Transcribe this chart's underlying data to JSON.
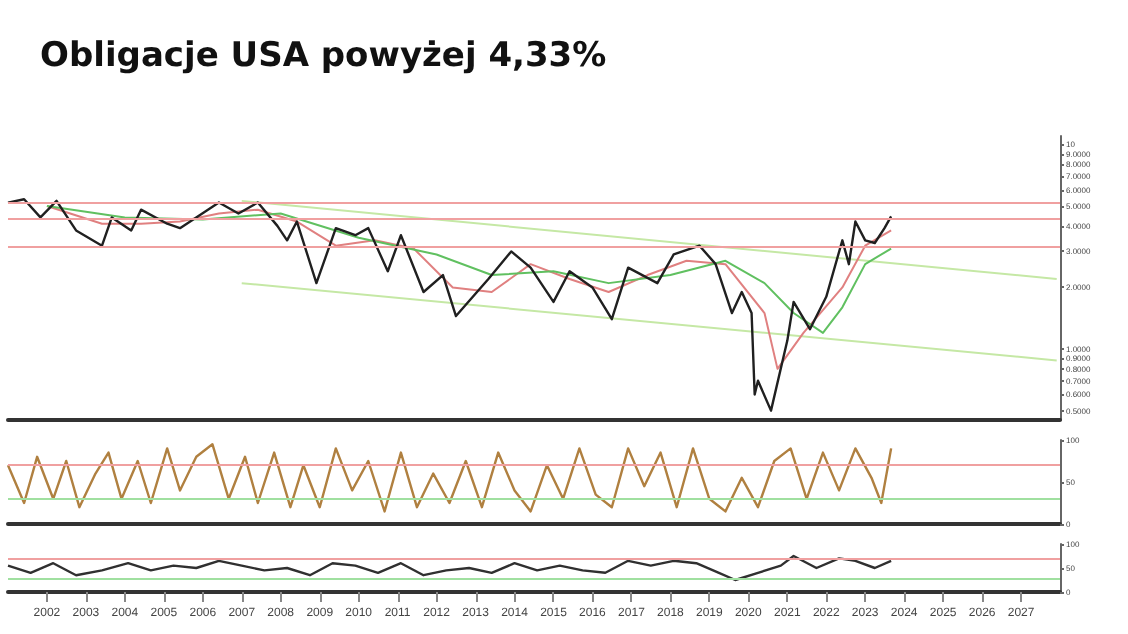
{
  "chart_data": [
    {
      "type": "line",
      "title": "Obligacje USA powyżej 4,33%",
      "log": "y",
      "grid": false,
      "marker": "none",
      "line_style": "solid",
      "tick_labels": "y",
      "xlim": [
        "2001-01",
        "2028-01"
      ],
      "ylim": [
        0.45,
        11
      ],
      "yticks": [
        {
          "value": 0.5,
          "label": "0.5000"
        },
        {
          "value": 0.6,
          "label": "0.6000"
        },
        {
          "value": 0.7,
          "label": "0.7000"
        },
        {
          "value": 0.8,
          "label": "0.8000"
        },
        {
          "value": 0.9,
          "label": "0.9000"
        },
        {
          "value": 1,
          "label": "1.0000"
        },
        {
          "value": 2,
          "label": "2.0000"
        },
        {
          "value": 3,
          "label": "3.0000"
        },
        {
          "value": 4,
          "label": "4.0000"
        },
        {
          "value": 5,
          "label": "5.0000"
        },
        {
          "value": 6,
          "label": "6.0000"
        },
        {
          "value": 7,
          "label": "7.0000"
        },
        {
          "value": 8,
          "label": "8.0000"
        },
        {
          "value": 9,
          "label": "9.0000"
        },
        {
          "value": 10,
          "label": "10"
        }
      ],
      "ref_lines": [
        {
          "axis": "y",
          "value": 5.25,
          "color": "#f0a0a0"
        },
        {
          "axis": "y",
          "value": 4.33,
          "color": "#f0a0a0"
        },
        {
          "axis": "y",
          "value": 3.2,
          "color": "#f0a0a0"
        }
      ],
      "series": [
        {
          "color": "#c5e8a5",
          "x": [
            "2007-01",
            "2027-12"
          ],
          "values": [
            5.3,
            2.2
          ]
        },
        {
          "color": "#c5e8a5",
          "x": [
            "2007-01",
            "2027-12"
          ],
          "values": [
            2.1,
            0.88
          ]
        },
        {
          "color": "#e08080",
          "x": [
            "2002-01",
            "2003-06",
            "2004-06",
            "2005-06",
            "2006-06",
            "2007-06",
            "2008-06",
            "2009-06",
            "2010-06",
            "2011-06",
            "2012-06",
            "2013-06",
            "2014-06",
            "2015-06",
            "2016-06",
            "2017-06",
            "2018-06",
            "2019-06",
            "2020-06",
            "2020-10",
            "2021-06",
            "2022-06",
            "2023-01",
            "2023-09"
          ],
          "values": [
            5.0,
            4.1,
            4.1,
            4.2,
            4.6,
            4.8,
            4.2,
            3.2,
            3.4,
            3.1,
            2.0,
            1.9,
            2.6,
            2.2,
            1.9,
            2.3,
            2.7,
            2.6,
            1.5,
            0.8,
            1.2,
            2.0,
            3.2,
            3.8
          ]
        },
        {
          "color": "#60c060",
          "x": [
            "2002-01",
            "2004-01",
            "2006-01",
            "2008-01",
            "2010-01",
            "2012-01",
            "2013-06",
            "2015-01",
            "2016-06",
            "2018-01",
            "2019-06",
            "2020-06",
            "2021-03",
            "2021-12",
            "2022-06",
            "2023-01",
            "2023-09"
          ],
          "values": [
            5.0,
            4.4,
            4.3,
            4.6,
            3.5,
            2.9,
            2.3,
            2.4,
            2.1,
            2.3,
            2.7,
            2.1,
            1.5,
            1.2,
            1.6,
            2.6,
            3.1
          ]
        },
        {
          "color": "#202020",
          "x": [
            "2001-01",
            "2001-06",
            "2001-11",
            "2002-04",
            "2002-10",
            "2003-06",
            "2003-09",
            "2004-03",
            "2004-06",
            "2005-02",
            "2005-06",
            "2006-06",
            "2006-12",
            "2007-06",
            "2007-12",
            "2008-03",
            "2008-06",
            "2008-12",
            "2009-06",
            "2009-12",
            "2010-04",
            "2010-10",
            "2011-02",
            "2011-09",
            "2012-03",
            "2012-07",
            "2013-05",
            "2013-12",
            "2014-06",
            "2015-01",
            "2015-06",
            "2016-01",
            "2016-07",
            "2016-12",
            "2017-09",
            "2018-02",
            "2018-10",
            "2019-03",
            "2019-08",
            "2019-11",
            "2020-02",
            "2020-03",
            "2020-04",
            "2020-08",
            "2021-01",
            "2021-03",
            "2021-08",
            "2022-01",
            "2022-06",
            "2022-08",
            "2022-10",
            "2023-01",
            "2023-04",
            "2023-07",
            "2023-09"
          ],
          "values": [
            5.2,
            5.4,
            4.4,
            5.3,
            3.8,
            3.2,
            4.4,
            3.8,
            4.8,
            4.1,
            3.9,
            5.2,
            4.6,
            5.2,
            4.0,
            3.4,
            4.2,
            2.1,
            3.9,
            3.6,
            3.9,
            2.4,
            3.6,
            1.9,
            2.3,
            1.45,
            2.2,
            3.0,
            2.5,
            1.7,
            2.4,
            2.0,
            1.4,
            2.5,
            2.1,
            2.9,
            3.2,
            2.6,
            1.5,
            1.9,
            1.5,
            0.6,
            0.7,
            0.5,
            1.1,
            1.7,
            1.25,
            1.8,
            3.4,
            2.6,
            4.2,
            3.4,
            3.3,
            3.9,
            4.45
          ]
        }
      ]
    },
    {
      "type": "line",
      "grid": false,
      "marker": "none",
      "tick_labels": "y",
      "xlim": [
        "2001-01",
        "2028-01"
      ],
      "ylim": [
        0,
        100
      ],
      "yticks": [
        0,
        50,
        100
      ],
      "ref_lines": [
        {
          "axis": "y",
          "value": 70,
          "color": "#f0a0a0"
        },
        {
          "axis": "y",
          "value": 30,
          "color": "#a0e0a0"
        }
      ],
      "series": [
        {
          "color": "#b08040",
          "x": [
            "2001-01",
            "2001-06",
            "2001-10",
            "2002-03",
            "2002-07",
            "2002-11",
            "2003-04",
            "2003-08",
            "2003-12",
            "2004-05",
            "2004-09",
            "2005-02",
            "2005-06",
            "2005-11",
            "2006-04",
            "2006-09",
            "2007-02",
            "2007-06",
            "2007-11",
            "2008-04",
            "2008-08",
            "2009-01",
            "2009-06",
            "2009-11",
            "2010-04",
            "2010-09",
            "2011-02",
            "2011-07",
            "2011-12",
            "2012-05",
            "2012-10",
            "2013-03",
            "2013-08",
            "2014-01",
            "2014-06",
            "2014-11",
            "2015-04",
            "2015-09",
            "2016-02",
            "2016-07",
            "2016-12",
            "2017-05",
            "2017-10",
            "2018-03",
            "2018-08",
            "2019-01",
            "2019-06",
            "2019-11",
            "2020-04",
            "2020-09",
            "2021-02",
            "2021-07",
            "2021-12",
            "2022-05",
            "2022-10",
            "2023-03",
            "2023-06",
            "2023-09"
          ],
          "values": [
            70,
            25,
            80,
            30,
            75,
            20,
            60,
            85,
            30,
            75,
            25,
            90,
            40,
            80,
            95,
            30,
            80,
            25,
            85,
            20,
            70,
            20,
            90,
            40,
            75,
            15,
            85,
            20,
            60,
            25,
            75,
            20,
            85,
            40,
            15,
            70,
            30,
            90,
            35,
            20,
            90,
            45,
            85,
            20,
            90,
            30,
            15,
            55,
            20,
            75,
            90,
            30,
            85,
            40,
            90,
            55,
            25,
            90
          ]
        }
      ]
    },
    {
      "type": "line",
      "grid": false,
      "marker": "none",
      "xlim": [
        "2001-01",
        "2028-01"
      ],
      "ylim": [
        0,
        100
      ],
      "yticks": [
        0,
        50,
        100
      ],
      "xticks": [
        {
          "value": "2002-01",
          "label": "2002"
        },
        {
          "value": "2003-01",
          "label": "2003"
        },
        {
          "value": "2004-01",
          "label": "2004"
        },
        {
          "value": "2005-01",
          "label": "2005"
        },
        {
          "value": "2006-01",
          "label": "2006"
        },
        {
          "value": "2007-01",
          "label": "2007"
        },
        {
          "value": "2008-01",
          "label": "2008"
        },
        {
          "value": "2009-01",
          "label": "2009"
        },
        {
          "value": "2010-01",
          "label": "2010"
        },
        {
          "value": "2011-01",
          "label": "2011"
        },
        {
          "value": "2012-01",
          "label": "2012"
        },
        {
          "value": "2013-01",
          "label": "2013"
        },
        {
          "value": "2014-01",
          "label": "2014"
        },
        {
          "value": "2015-01",
          "label": "2015"
        },
        {
          "value": "2016-01",
          "label": "2016"
        },
        {
          "value": "2017-01",
          "label": "2017"
        },
        {
          "value": "2018-01",
          "label": "2018"
        },
        {
          "value": "2019-01",
          "label": "2019"
        },
        {
          "value": "2020-01",
          "label": "2020"
        },
        {
          "value": "2021-01",
          "label": "2021"
        },
        {
          "value": "2022-01",
          "label": "2022"
        },
        {
          "value": "2023-01",
          "label": "2023"
        },
        {
          "value": "2024-01",
          "label": "2024"
        },
        {
          "value": "2025-01",
          "label": "2025"
        },
        {
          "value": "2026-01",
          "label": "2026"
        },
        {
          "value": "2027-01",
          "label": "2027"
        }
      ],
      "ref_lines": [
        {
          "axis": "y",
          "value": 70,
          "color": "#f0a0a0"
        },
        {
          "axis": "y",
          "value": 30,
          "color": "#a0e0a0"
        }
      ],
      "series": [
        {
          "color": "#303030",
          "x": [
            "2001-01",
            "2001-08",
            "2002-03",
            "2002-10",
            "2003-06",
            "2004-02",
            "2004-09",
            "2005-04",
            "2005-11",
            "2006-06",
            "2007-01",
            "2007-08",
            "2008-03",
            "2008-10",
            "2009-05",
            "2009-12",
            "2010-07",
            "2011-02",
            "2011-09",
            "2012-04",
            "2012-11",
            "2013-06",
            "2014-01",
            "2014-08",
            "2015-03",
            "2015-10",
            "2016-05",
            "2016-12",
            "2017-07",
            "2018-02",
            "2018-09",
            "2019-04",
            "2019-09",
            "2020-04",
            "2020-11",
            "2021-03",
            "2021-10",
            "2022-05",
            "2022-10",
            "2023-04",
            "2023-09"
          ],
          "values": [
            55,
            40,
            60,
            35,
            45,
            60,
            45,
            55,
            50,
            65,
            55,
            45,
            50,
            35,
            60,
            55,
            40,
            60,
            35,
            45,
            50,
            40,
            60,
            45,
            55,
            45,
            40,
            65,
            55,
            65,
            60,
            40,
            25,
            40,
            55,
            75,
            50,
            70,
            65,
            50,
            65
          ]
        }
      ]
    }
  ]
}
